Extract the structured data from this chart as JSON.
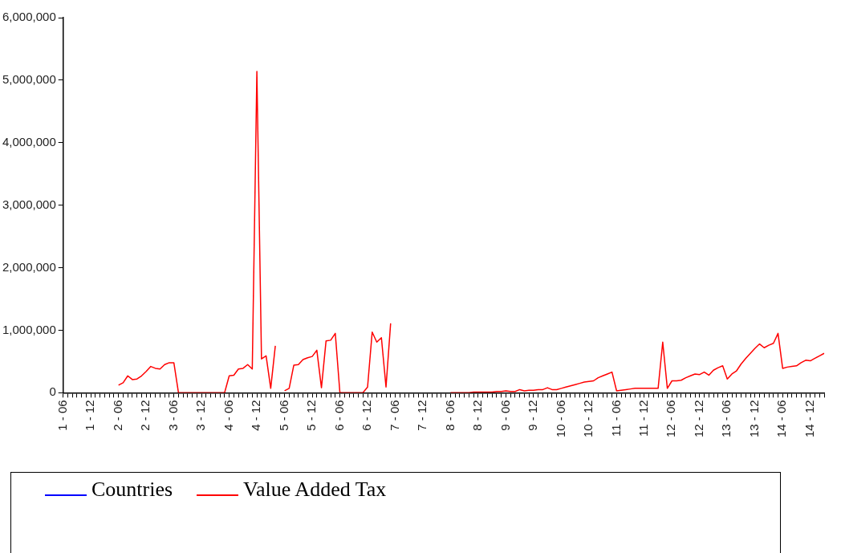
{
  "chart_data": {
    "type": "line",
    "categories": [
      "1 - 06",
      null,
      null,
      null,
      null,
      null,
      "1 - 12",
      null,
      null,
      null,
      null,
      null,
      "2 - 06",
      null,
      null,
      null,
      null,
      null,
      "2 - 12",
      null,
      null,
      null,
      null,
      null,
      "3 - 06",
      null,
      null,
      null,
      null,
      null,
      "3 - 12",
      null,
      null,
      null,
      null,
      null,
      "4 - 06",
      null,
      null,
      null,
      null,
      null,
      "4 - 12",
      null,
      null,
      null,
      null,
      null,
      "5 - 06",
      null,
      null,
      null,
      null,
      null,
      "5 - 12",
      null,
      null,
      null,
      null,
      null,
      "6 - 06",
      null,
      null,
      null,
      null,
      null,
      "6 - 12",
      null,
      null,
      null,
      null,
      null,
      "7 - 06",
      null,
      null,
      null,
      null,
      null,
      "7 - 12",
      null,
      null,
      null,
      null,
      null,
      "8 - 06",
      null,
      null,
      null,
      null,
      null,
      "8 - 12",
      null,
      null,
      null,
      null,
      null,
      "9 - 06",
      null,
      null,
      null,
      null,
      null,
      "9 - 12",
      null,
      null,
      null,
      null,
      null,
      "10 - 06",
      null,
      null,
      null,
      null,
      null,
      "10 - 12",
      null,
      null,
      null,
      null,
      null,
      "11 - 06",
      null,
      null,
      null,
      null,
      null,
      "11 - 12",
      null,
      null,
      null,
      null,
      null,
      "12 - 06",
      null,
      null,
      null,
      null,
      null,
      "12 - 12",
      null,
      null,
      null,
      null,
      null,
      "13 - 06",
      null,
      null,
      null,
      null,
      null,
      "13 - 12",
      null,
      null,
      null,
      null,
      null,
      "14 - 06",
      null,
      null,
      null,
      null,
      null,
      "14 - 12",
      null,
      null,
      null
    ],
    "series": [
      {
        "name": "Countries",
        "color": "#0000ff",
        "values": [
          null,
          null,
          null,
          null,
          null,
          null,
          null,
          null,
          null,
          null,
          null,
          null,
          null,
          null,
          null,
          null,
          null,
          null,
          null,
          null,
          null,
          null,
          null,
          null,
          null,
          null,
          null,
          null,
          null,
          null,
          null,
          null,
          null,
          null,
          null,
          null,
          null,
          null,
          null,
          null,
          null,
          null,
          null,
          null,
          null,
          null,
          null,
          null,
          null,
          null,
          null,
          null,
          null,
          null,
          null,
          null,
          null,
          null,
          null,
          null,
          null,
          null,
          null,
          null,
          null,
          null,
          null,
          null,
          null,
          null,
          null,
          null,
          null,
          null,
          null,
          null,
          null,
          null,
          null,
          null,
          null,
          null,
          null,
          null,
          null,
          null,
          null,
          null,
          null,
          null,
          null,
          null,
          null,
          null,
          null,
          null,
          null,
          null,
          null,
          null,
          null,
          null,
          null,
          null,
          null,
          null,
          null,
          null,
          null,
          null,
          null,
          null,
          null,
          null,
          null,
          null,
          null,
          null,
          null,
          null,
          null,
          null,
          null,
          null,
          null,
          null,
          null,
          null,
          null,
          null,
          null,
          null,
          null,
          null,
          null,
          null,
          null,
          null,
          null,
          null,
          null,
          null,
          null,
          null,
          null,
          null,
          null,
          null,
          null,
          null,
          null,
          null,
          null,
          null,
          null,
          null,
          null,
          null,
          null,
          null,
          null,
          null,
          null,
          null,
          null,
          null
        ]
      },
      {
        "name": "Value Added Tax",
        "color": "#ff0000",
        "values": [
          null,
          null,
          null,
          null,
          null,
          null,
          null,
          null,
          null,
          null,
          null,
          null,
          120000,
          160000,
          270000,
          210000,
          220000,
          270000,
          340000,
          420000,
          390000,
          380000,
          450000,
          480000,
          480000,
          0,
          0,
          0,
          0,
          0,
          0,
          0,
          0,
          0,
          0,
          0,
          270000,
          280000,
          380000,
          390000,
          450000,
          380000,
          5140000,
          540000,
          590000,
          70000,
          750000,
          null,
          30000,
          70000,
          440000,
          450000,
          530000,
          560000,
          580000,
          680000,
          80000,
          830000,
          840000,
          950000,
          0,
          0,
          0,
          0,
          0,
          0,
          90000,
          970000,
          810000,
          880000,
          90000,
          1110000,
          null,
          null,
          null,
          null,
          null,
          null,
          null,
          null,
          null,
          null,
          null,
          null,
          0,
          0,
          0,
          0,
          0,
          10000,
          10000,
          10000,
          10000,
          10000,
          20000,
          20000,
          30000,
          20000,
          20000,
          50000,
          30000,
          40000,
          40000,
          50000,
          50000,
          80000,
          50000,
          50000,
          70000,
          90000,
          110000,
          130000,
          150000,
          170000,
          180000,
          190000,
          240000,
          270000,
          300000,
          330000,
          30000,
          40000,
          50000,
          60000,
          70000,
          70000,
          70000,
          70000,
          70000,
          70000,
          810000,
          70000,
          190000,
          190000,
          200000,
          240000,
          270000,
          300000,
          290000,
          330000,
          280000,
          360000,
          400000,
          430000,
          220000,
          300000,
          350000,
          460000,
          550000,
          630000,
          710000,
          780000,
          720000,
          760000,
          790000,
          950000,
          390000,
          410000,
          420000,
          430000,
          480000,
          520000,
          510000,
          550000,
          590000,
          630000
        ]
      }
    ],
    "ylim": [
      0,
      6000000
    ],
    "yticks": [
      {
        "value": 0,
        "label": "0"
      },
      {
        "value": 1000000,
        "label": "1,000,000"
      },
      {
        "value": 2000000,
        "label": "2,000,000"
      },
      {
        "value": 3000000,
        "label": "3,000,000"
      },
      {
        "value": 4000000,
        "label": "4,000,000"
      },
      {
        "value": 5000000,
        "label": "5,000,000"
      },
      {
        "value": 6000000,
        "label": "6,000,000"
      }
    ],
    "grid": false,
    "legend": "bottom",
    "marker": "none",
    "line_style": "solid"
  }
}
